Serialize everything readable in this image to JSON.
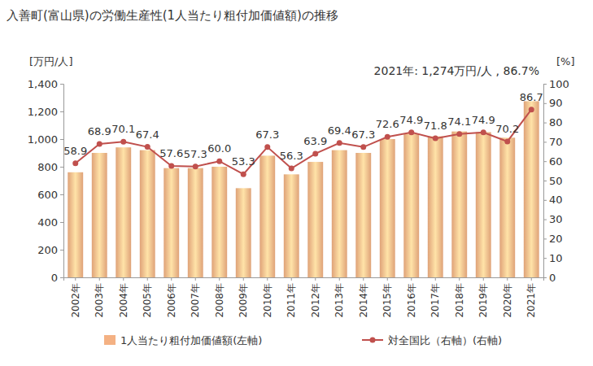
{
  "chart_data": {
    "type": "bar",
    "title": "入善町(富山県)の労働生産性(1人当たり粗付加価値額)の推移",
    "annotation": "2021年: 1,274万円/人 , 86.7%",
    "y_label": "[万円/人]",
    "y2_label": "[%]",
    "categories": [
      "2002年",
      "2003年",
      "2004年",
      "2005年",
      "2006年",
      "2007年",
      "2008年",
      "2009年",
      "2010年",
      "2011年",
      "2012年",
      "2013年",
      "2014年",
      "2015年",
      "2016年",
      "2017年",
      "2018年",
      "2019年",
      "2020年",
      "2021年"
    ],
    "series": [
      {
        "name": "1人当たり粗付加価値額(左軸)",
        "type": "bar",
        "color": "#f4b183",
        "values": [
          760,
          900,
          940,
          920,
          790,
          790,
          800,
          645,
          880,
          745,
          835,
          920,
          900,
          1000,
          1040,
          1020,
          1055,
          1050,
          1010,
          1274
        ]
      },
      {
        "name": "対全国比（右軸）(右軸)",
        "type": "line",
        "axis": "y2",
        "color": "#c0504d",
        "marker": "circle",
        "data_labels": true,
        "values": [
          58.9,
          68.9,
          70.1,
          67.4,
          57.6,
          57.3,
          60.0,
          53.3,
          67.3,
          56.3,
          63.9,
          69.4,
          67.3,
          72.6,
          74.9,
          71.8,
          74.1,
          74.9,
          70.2,
          86.7
        ],
        "value_labels": [
          "58.9",
          "68.9",
          "70.1",
          "67.4",
          "57.6",
          "57.3",
          "60.0",
          "53.3",
          "67.3",
          "56.3",
          "63.9",
          "69.4",
          "67.3",
          "72.6",
          "74.9",
          "71.8",
          "74.1",
          "74.9",
          "70.2",
          "86.7"
        ]
      }
    ],
    "ylim": [
      0,
      1400
    ],
    "yticks": [
      0,
      200,
      400,
      600,
      800,
      {
        "value": 1000,
        "label": "1,000"
      },
      {
        "value": 1200,
        "label": "1,200"
      },
      {
        "value": 1400,
        "label": "1,400"
      }
    ],
    "y2lim": [
      0,
      100
    ],
    "y2ticks": [
      0,
      10,
      20,
      30,
      40,
      50,
      60,
      70,
      80,
      90,
      100
    ],
    "grid": false,
    "legend": "bottom"
  }
}
